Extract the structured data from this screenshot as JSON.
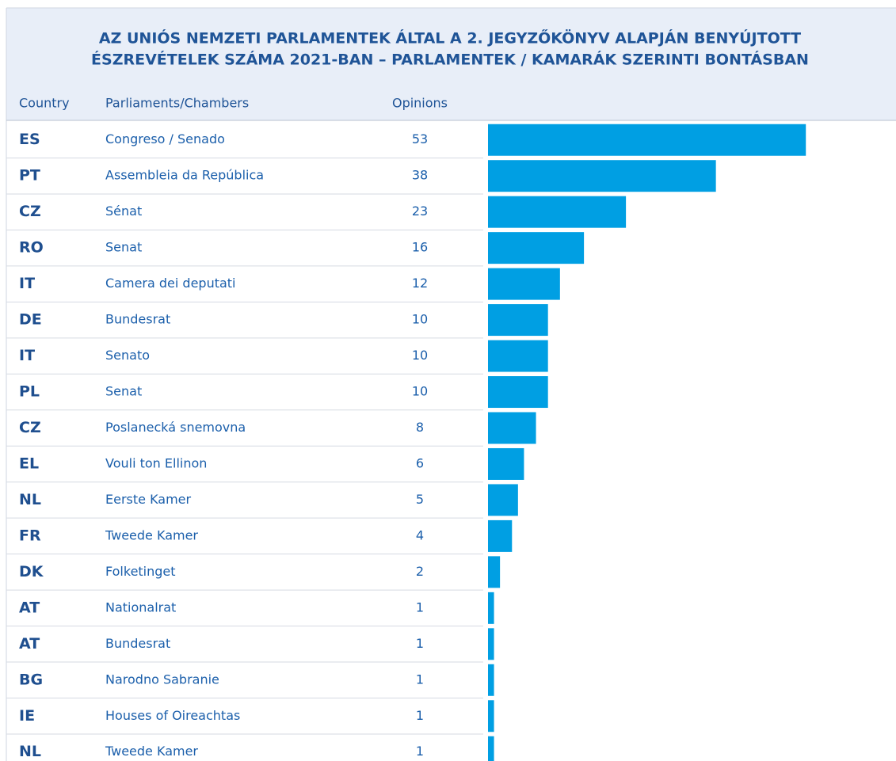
{
  "chart_data": {
    "type": "bar",
    "title": [
      "AZ UNIÓS NEMZETI PARLAMENTEK ÁLTAL A 2. JEGYZŐKÖNYV ALAPJÁN BENYÚJTOTT",
      "ÉSZREVÉTELEK SZÁMA 2021-BAN – PARLAMENTEK / KAMARÁK SZERINTI BONTÁSBAN"
    ],
    "columns": [
      "Country",
      "Parliaments/Chambers",
      "Opinions"
    ],
    "countries": [
      "ES",
      "PT",
      "CZ",
      "RO",
      "IT",
      "DE",
      "IT",
      "PL",
      "CZ",
      "EL",
      "NL",
      "FR",
      "DK",
      "AT",
      "AT",
      "BG",
      "IE",
      "NL"
    ],
    "categories": [
      "Congreso / Senado",
      "Assembleia da República",
      "Sénat",
      "Senat",
      "Camera dei deputati",
      "Bundesrat",
      "Senato",
      "Senat",
      "Poslanecká snemovna",
      "Vouli ton Ellinon",
      "Eerste Kamer",
      "Tweede Kamer",
      "Folketinget",
      "Nationalrat",
      "Bundesrat",
      "Narodno Sabranie",
      "Houses of Oireachtas",
      "Tweede Kamer"
    ],
    "values": [
      53,
      38,
      23,
      16,
      12,
      10,
      10,
      10,
      8,
      6,
      5,
      4,
      2,
      1,
      1,
      1,
      1,
      1
    ],
    "color": "#009fe3"
  }
}
